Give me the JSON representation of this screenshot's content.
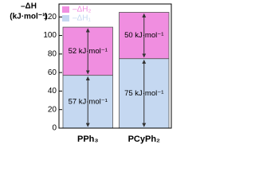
{
  "chart_data": {
    "type": "bar",
    "stacked": true,
    "y_label_lines": [
      "–ΔH",
      "(kJ·mol⁻¹)"
    ],
    "categories": [
      "PPh₃",
      "PCyPh₂"
    ],
    "series": [
      {
        "name": "–ΔH₁",
        "color": "#c5d8f1",
        "values": [
          57,
          75
        ],
        "value_labels": [
          "57 kJ·mol⁻¹",
          "75 kJ·mol⁻¹"
        ]
      },
      {
        "name": "–ΔH₂",
        "color": "#f08ee0",
        "values": [
          52,
          50
        ],
        "value_labels": [
          "52 kJ·mol⁻¹",
          "50 kJ·mol⁻¹"
        ]
      }
    ],
    "ylim": [
      0,
      134
    ],
    "yticks": [
      0,
      20,
      40,
      60,
      80,
      100,
      120
    ],
    "grid": false,
    "legend": "upper left"
  }
}
